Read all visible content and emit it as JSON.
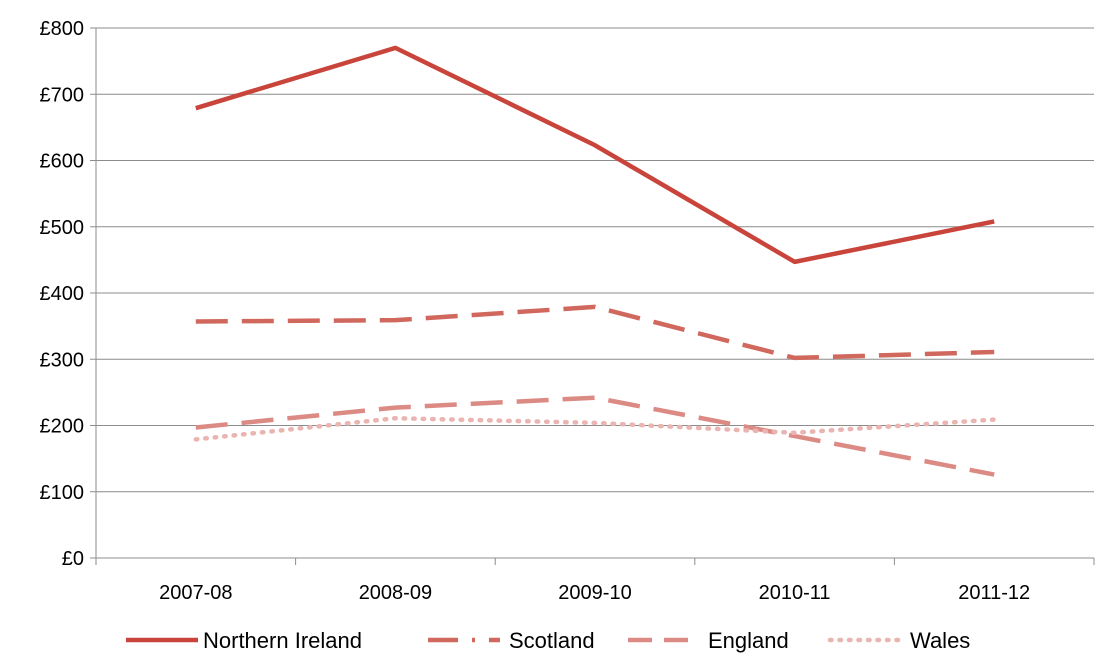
{
  "chart_data": {
    "type": "line",
    "categories": [
      "2007-08",
      "2008-09",
      "2009-10",
      "2010-11",
      "2011-12"
    ],
    "ylim": [
      0,
      800
    ],
    "yticks": [
      0,
      100,
      200,
      300,
      400,
      500,
      600,
      700,
      800
    ],
    "ytick_labels": [
      "£0",
      "£100",
      "£200",
      "£300",
      "£400",
      "£500",
      "£600",
      "£700",
      "£800"
    ],
    "grid": true,
    "legend_position": "bottom",
    "series": [
      {
        "name": "Northern Ireland",
        "values": [
          679,
          770,
          623,
          447,
          508
        ],
        "color": "#c9443a",
        "style": "solid"
      },
      {
        "name": "Scotland",
        "values": [
          357,
          359,
          379,
          302,
          311
        ],
        "color": "#d0685e",
        "style": "dash"
      },
      {
        "name": "England",
        "values": [
          197,
          227,
          242,
          184,
          126
        ],
        "color": "#dc8a84",
        "style": "dash"
      },
      {
        "name": "Wales",
        "values": [
          179,
          211,
          204,
          189,
          209
        ],
        "color": "#eab5b1",
        "style": "dot"
      }
    ]
  }
}
